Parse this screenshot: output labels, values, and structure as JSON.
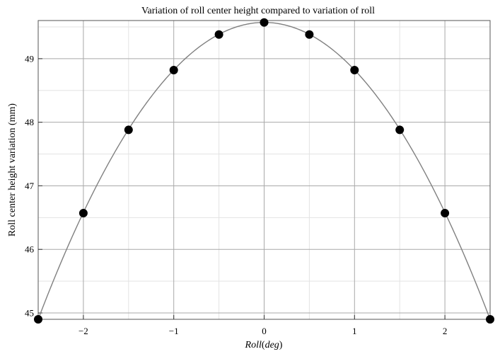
{
  "chart_data": {
    "type": "scatter",
    "title": "Variation of roll center height compared to variation of roll",
    "xlabel": "Roll(deg)",
    "xlabel_var": "Roll",
    "xlabel_unit": "deg",
    "ylabel": "Roll center height variation (mm)",
    "xlim": [
      -2.5,
      2.5
    ],
    "ylim": [
      44.9,
      49.6
    ],
    "grid": true,
    "x_ticks": [
      -2,
      -1,
      0,
      1,
      2
    ],
    "x_tick_labels": [
      "−2",
      "−1",
      "0",
      "1",
      "2"
    ],
    "y_ticks": [
      45,
      46,
      47,
      48,
      49
    ],
    "y_tick_labels": [
      "45",
      "46",
      "47",
      "48",
      "49"
    ],
    "series": [
      {
        "style": "points",
        "color": "#000000",
        "points": [
          {
            "x": -2.5,
            "y": 44.9
          },
          {
            "x": -2.0,
            "y": 46.57
          },
          {
            "x": -1.5,
            "y": 47.88
          },
          {
            "x": -1.0,
            "y": 48.82
          },
          {
            "x": -0.5,
            "y": 49.38
          },
          {
            "x": 0.0,
            "y": 49.57
          },
          {
            "x": 0.5,
            "y": 49.38
          },
          {
            "x": 1.0,
            "y": 48.82
          },
          {
            "x": 1.5,
            "y": 47.88
          },
          {
            "x": 2.0,
            "y": 46.57
          },
          {
            "x": 2.5,
            "y": 44.9
          }
        ]
      },
      {
        "style": "curve",
        "color": "#808080",
        "fit": {
          "form": "quadratic",
          "a": -0.7472,
          "b": 0,
          "c": 49.57
        }
      }
    ]
  }
}
